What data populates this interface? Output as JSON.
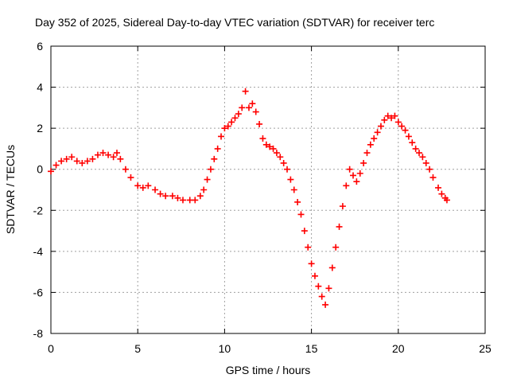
{
  "chart_data": {
    "type": "scatter",
    "title": "Day 352 of 2025, Sidereal Day-to-day VTEC variation (SDTVAR) for receiver terc",
    "xlabel": "GPS time / hours",
    "ylabel": "SDTVAR / TECUs",
    "xlim": [
      0,
      25
    ],
    "ylim": [
      -8,
      6
    ],
    "xticks": [
      0,
      5,
      10,
      15,
      20,
      25
    ],
    "yticks": [
      -8,
      -6,
      -4,
      -2,
      0,
      2,
      4,
      6
    ],
    "grid": true,
    "marker": "+",
    "series": [
      {
        "name": "SDTVAR",
        "color": "#ff0000",
        "x": [
          0.0,
          0.3,
          0.6,
          0.9,
          1.2,
          1.5,
          1.8,
          2.1,
          2.4,
          2.7,
          3.0,
          3.3,
          3.6,
          3.8,
          4.0,
          4.3,
          4.6,
          5.0,
          5.3,
          5.6,
          6.0,
          6.3,
          6.6,
          7.0,
          7.3,
          7.6,
          8.0,
          8.3,
          8.6,
          8.8,
          9.0,
          9.2,
          9.4,
          9.6,
          9.8,
          10.0,
          10.2,
          10.4,
          10.6,
          10.8,
          11.0,
          11.2,
          11.4,
          11.6,
          11.8,
          12.0,
          12.2,
          12.4,
          12.6,
          12.8,
          13.0,
          13.2,
          13.4,
          13.6,
          13.8,
          14.0,
          14.2,
          14.4,
          14.6,
          14.8,
          15.0,
          15.2,
          15.4,
          15.6,
          15.8,
          16.0,
          16.2,
          16.4,
          16.6,
          16.8,
          17.0,
          17.2,
          17.4,
          17.6,
          17.8,
          18.0,
          18.2,
          18.4,
          18.6,
          18.8,
          19.0,
          19.2,
          19.4,
          19.6,
          19.8,
          20.0,
          20.2,
          20.4,
          20.6,
          20.8,
          21.0,
          21.2,
          21.4,
          21.6,
          21.8,
          22.0,
          22.3,
          22.5,
          22.7,
          22.8
        ],
        "y": [
          -0.1,
          0.2,
          0.4,
          0.5,
          0.6,
          0.4,
          0.3,
          0.4,
          0.5,
          0.7,
          0.8,
          0.7,
          0.6,
          0.8,
          0.5,
          0.0,
          -0.4,
          -0.8,
          -0.9,
          -0.8,
          -1.0,
          -1.2,
          -1.3,
          -1.3,
          -1.4,
          -1.5,
          -1.5,
          -1.5,
          -1.3,
          -1.0,
          -0.5,
          0.0,
          0.5,
          1.0,
          1.6,
          2.0,
          2.1,
          2.3,
          2.5,
          2.7,
          3.0,
          3.8,
          3.0,
          3.2,
          2.8,
          2.2,
          1.5,
          1.2,
          1.1,
          1.0,
          0.8,
          0.6,
          0.3,
          0.0,
          -0.5,
          -1.0,
          -1.6,
          -2.2,
          -3.0,
          -3.8,
          -4.6,
          -5.2,
          -5.7,
          -6.2,
          -6.6,
          -5.8,
          -4.8,
          -3.8,
          -2.8,
          -1.8,
          -0.8,
          0.0,
          -0.3,
          -0.6,
          -0.2,
          0.3,
          0.8,
          1.2,
          1.5,
          1.8,
          2.1,
          2.4,
          2.6,
          2.5,
          2.6,
          2.3,
          2.1,
          1.9,
          1.6,
          1.3,
          1.0,
          0.8,
          0.6,
          0.3,
          0.0,
          -0.4,
          -0.9,
          -1.2,
          -1.4,
          -1.5
        ]
      }
    ]
  }
}
